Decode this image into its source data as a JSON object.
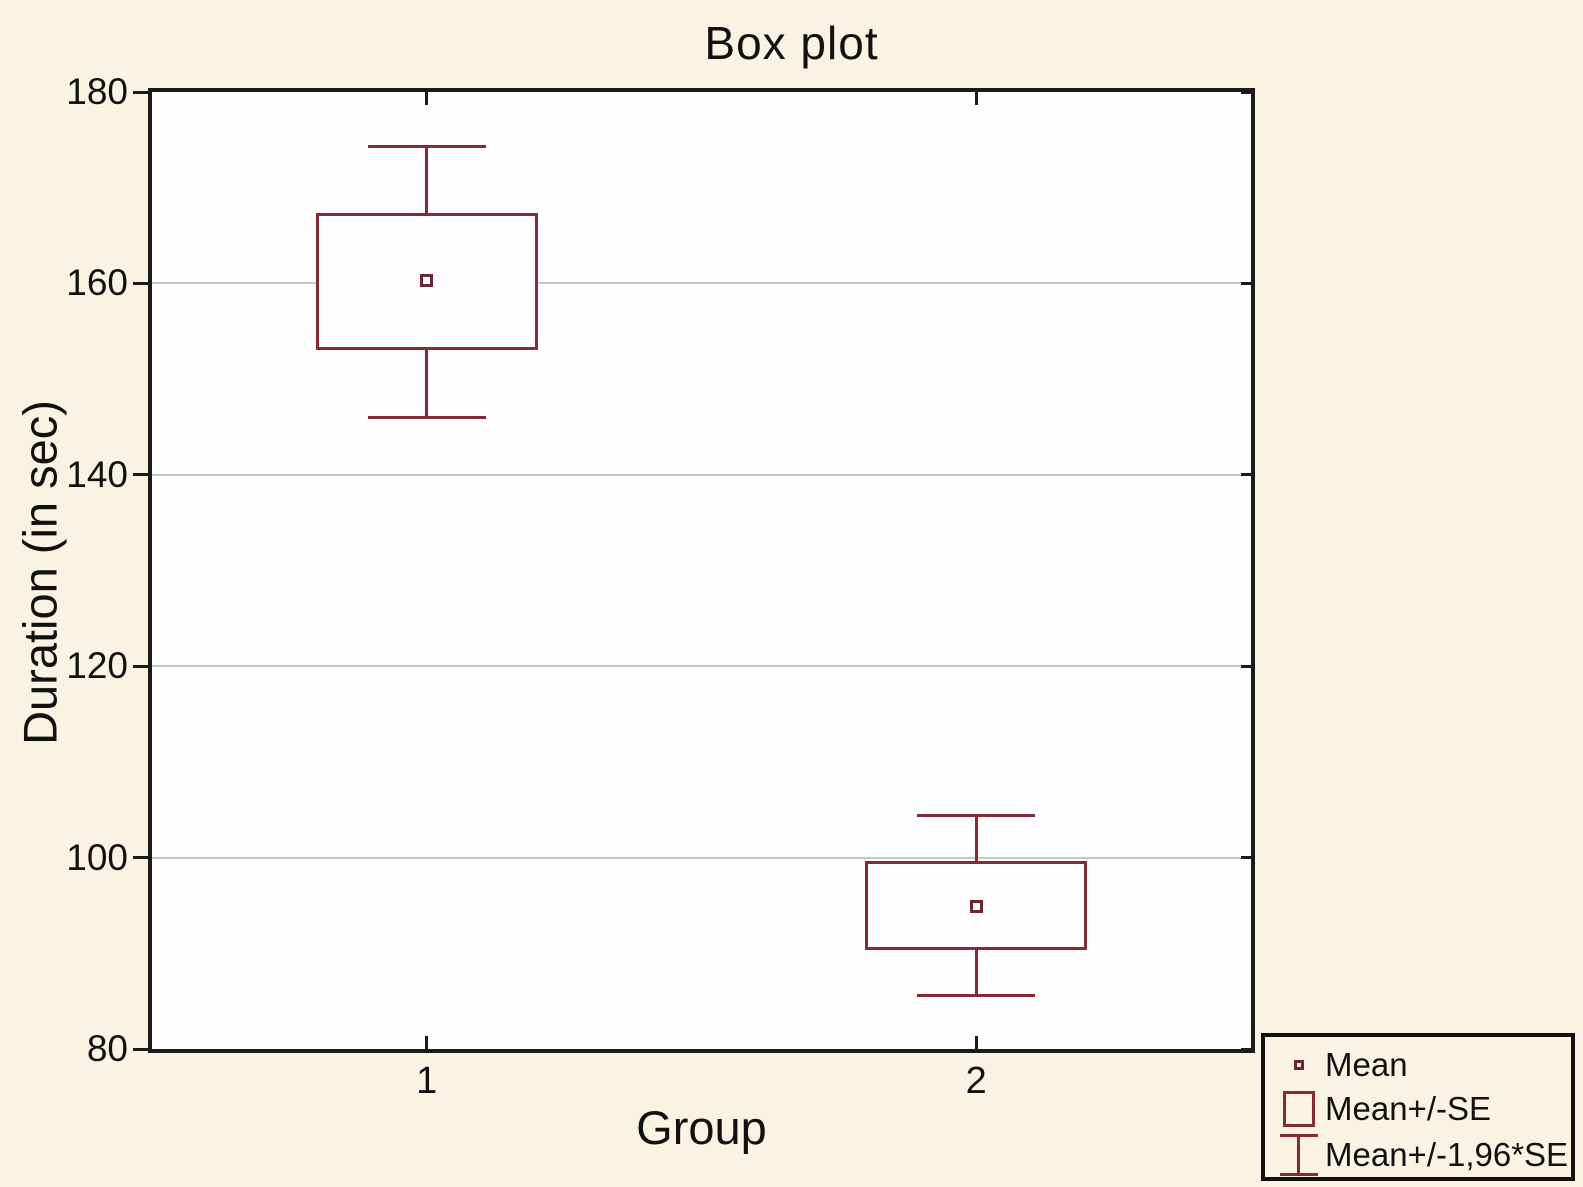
{
  "chart_data": {
    "type": "boxplot",
    "title": "Box plot",
    "xlabel": "Group",
    "ylabel": "Duration (in sec)",
    "ylim": [
      80,
      180
    ],
    "yticks": [
      80,
      100,
      120,
      140,
      160,
      180
    ],
    "gridlines": [
      100,
      120,
      140,
      160
    ],
    "grid": "horizontal",
    "categories": [
      "1",
      "2"
    ],
    "series": [
      {
        "group": "1",
        "mean": 160.3,
        "se_low": 153.0,
        "se_high": 167.4,
        "ci_low": 146.0,
        "ci_high": 174.3
      },
      {
        "group": "2",
        "mean": 94.9,
        "se_low": 90.3,
        "se_high": 99.6,
        "ci_low": 85.6,
        "ci_high": 104.4
      }
    ],
    "legend": {
      "entries": [
        "Mean",
        "Mean+/-SE",
        "Mean+/-1,96*SE"
      ],
      "position": "bottom-right"
    },
    "colors": {
      "box": "#852b38",
      "marker": "#6e2530",
      "frame": "#1b1b1b",
      "grid": "#c8c8c8",
      "page_background": "#faf3e3",
      "plot_background": "#fefefe"
    }
  }
}
